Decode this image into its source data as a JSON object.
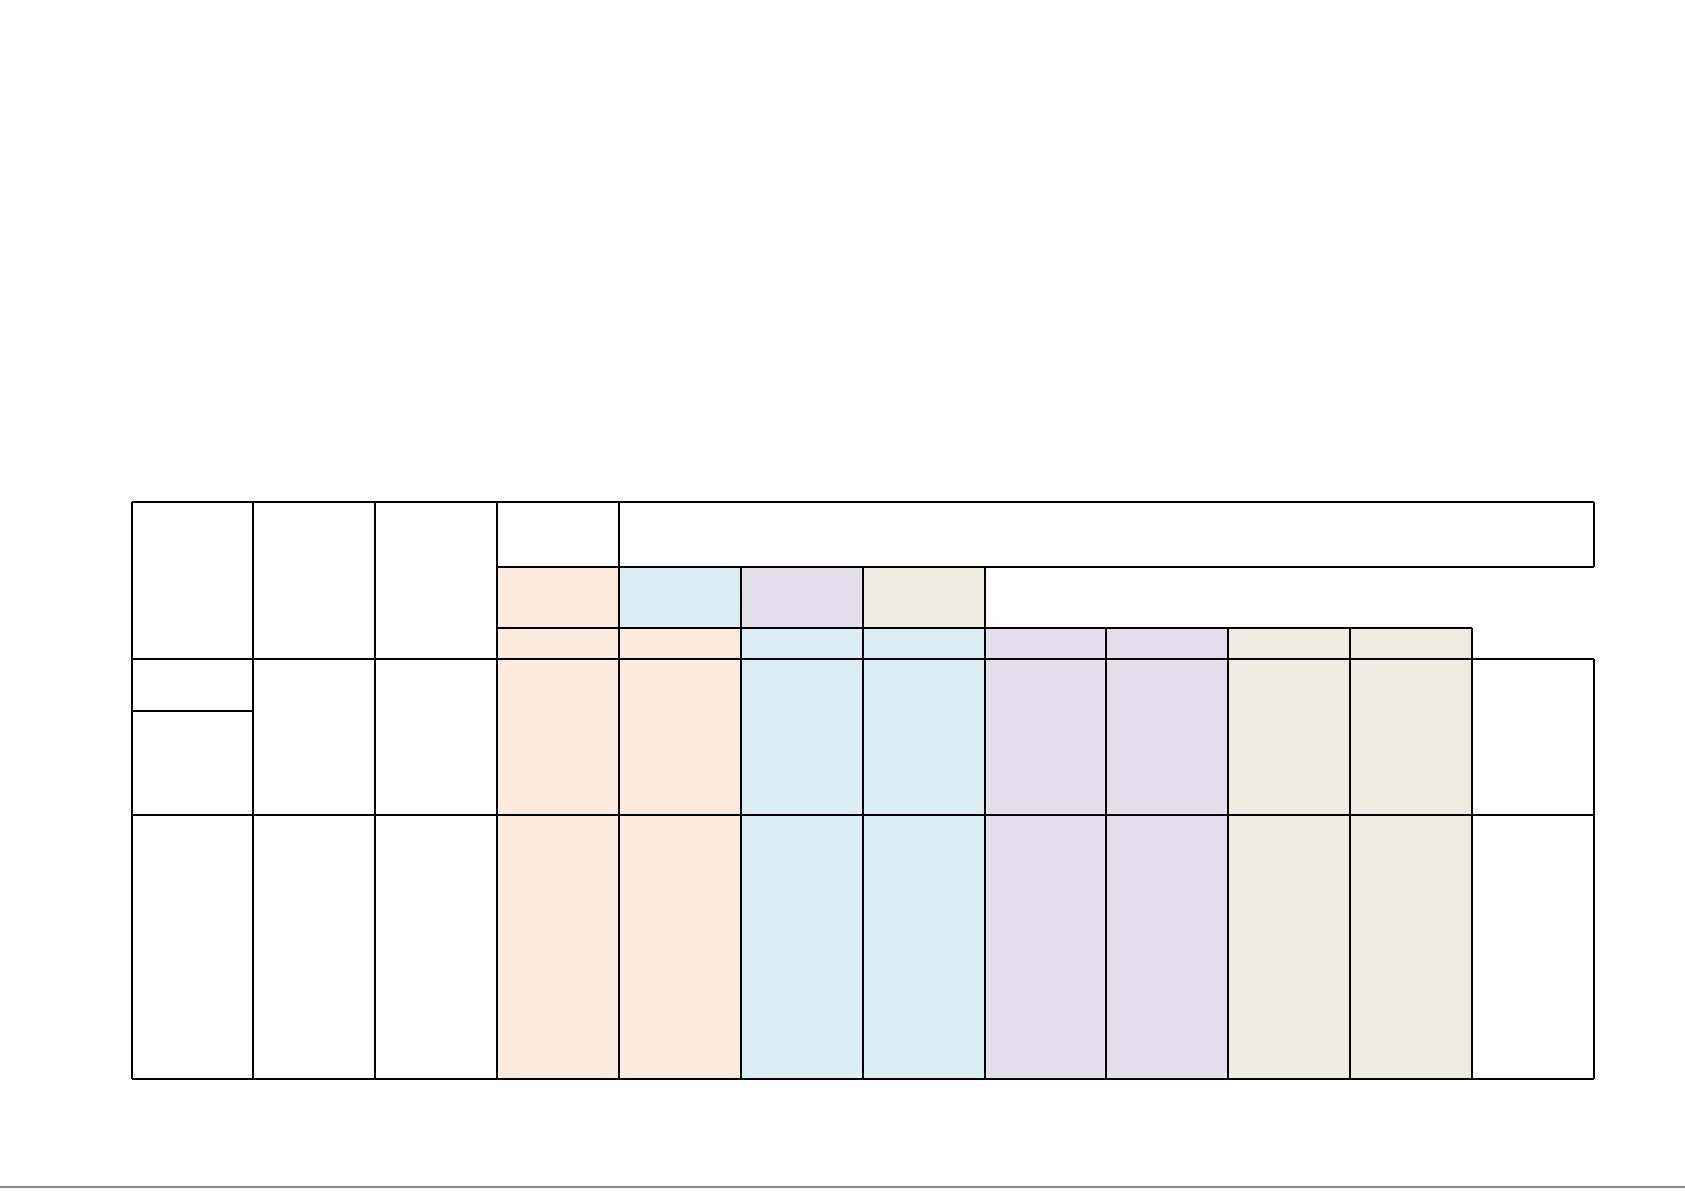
{
  "document": {
    "title": "",
    "table": {
      "header_rows": 3,
      "body_rows": 2,
      "columns": 13,
      "cells": []
    },
    "colors": {
      "peach": "#FBE9DC",
      "light_blue": "#DAEEF3",
      "lavender": "#E5DFEC",
      "beige": "#EEECE1",
      "border": "#000000",
      "background": "#FFFFFF"
    }
  }
}
